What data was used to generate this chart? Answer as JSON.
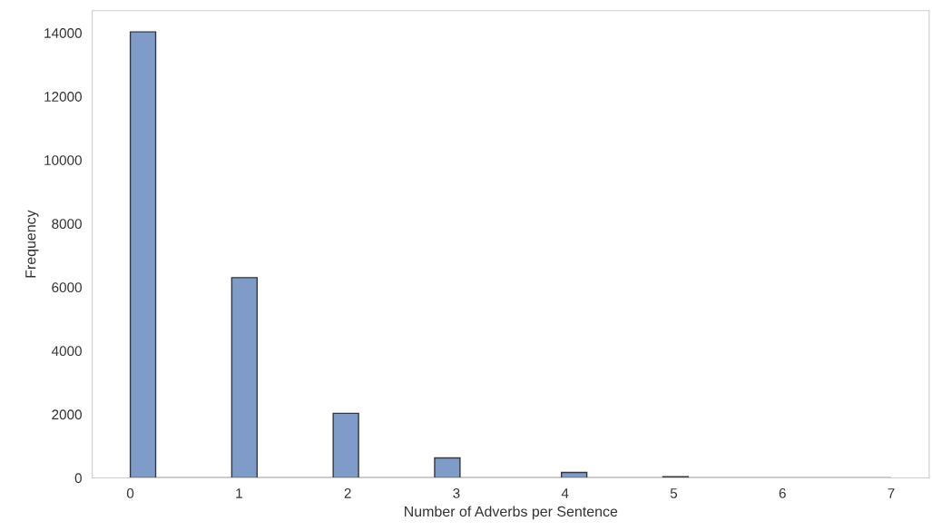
{
  "chart_data": {
    "type": "histogram",
    "xlabel": "Number of Adverbs per Sentence",
    "ylabel": "Frequency",
    "bins": [
      0,
      0.2333,
      0.4667,
      0.7,
      0.9333,
      1.1667,
      1.4,
      1.6333,
      1.8667,
      2.1,
      2.3333,
      2.5667,
      2.8,
      3.0333,
      3.2667,
      3.5,
      3.7333,
      3.9667,
      4.2,
      4.4333,
      4.6667,
      4.9,
      5.1333,
      5.3667,
      5.6,
      5.8333,
      6.0667,
      6.3,
      6.5333,
      6.7667,
      7
    ],
    "values": [
      14030,
      0,
      0,
      0,
      6300,
      0,
      0,
      0,
      2030,
      0,
      0,
      0,
      630,
      0,
      0,
      0,
      0,
      170,
      0,
      0,
      0,
      40,
      0,
      0,
      0,
      0,
      0,
      0,
      0,
      0
    ],
    "color": "#7f9cc8",
    "xlim": [
      -0.35,
      7.35
    ],
    "xticks": [
      0,
      1,
      2,
      3,
      4,
      5,
      6,
      7
    ],
    "ylim": [
      0,
      14700
    ],
    "yticks": [
      0,
      2000,
      4000,
      6000,
      8000,
      10000,
      12000,
      14000
    ],
    "grid": false
  }
}
